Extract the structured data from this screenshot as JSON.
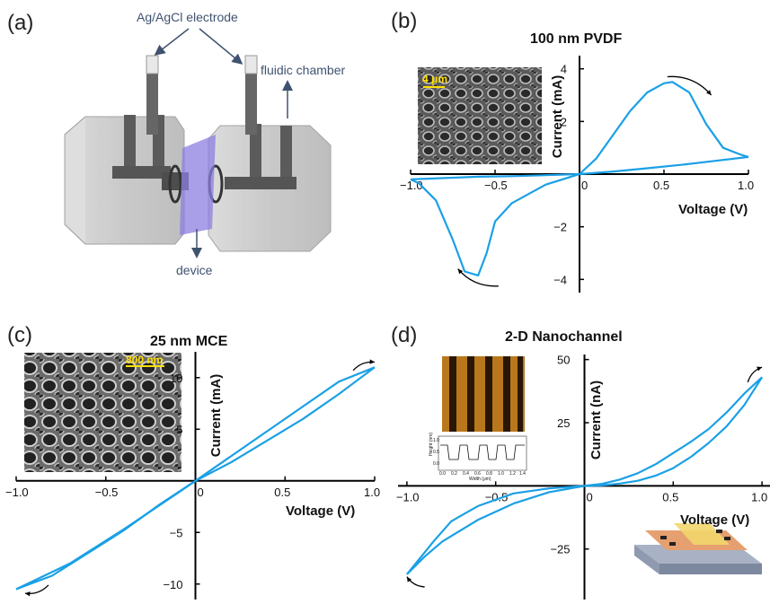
{
  "panels": {
    "a": {
      "letter": "(a)",
      "labels": {
        "electrode": "Ag/AgCl electrode",
        "chamber": "fluidic chamber",
        "device": "device"
      }
    },
    "b": {
      "letter": "(b)",
      "inset_scale": "4 μm"
    },
    "c": {
      "letter": "(c)",
      "inset_scale": "800 nm"
    },
    "d": {
      "letter": "(d)",
      "afm": {
        "ylabel": "Height (nm)",
        "xlabel": "Width (μm)",
        "yticks": [
          "1.0",
          "0.5",
          "0.0"
        ],
        "xticks": [
          "0.0",
          "0.2",
          "0.4",
          "0.6",
          "0.8",
          "1.0",
          "1.2",
          "1.4"
        ]
      }
    }
  },
  "colors": {
    "curve": "#1aa0e6",
    "arrow": "#000000",
    "axis": "#000000",
    "label_blue": "#3f5270"
  },
  "chart_data": [
    {
      "type": "line",
      "panel": "b",
      "title": "100 nm PVDF",
      "xlabel": "Voltage (V)",
      "ylabel": "Current (mA)",
      "xlim": [
        -1.0,
        1.0
      ],
      "ylim": [
        -4.5,
        4.5
      ],
      "xticks": [
        -1.0,
        -0.5,
        0,
        0.5,
        1.0
      ],
      "xtick_labels": [
        "−1.0",
        "−0.5",
        "0",
        "0.5",
        "1.0"
      ],
      "yticks": [
        -4,
        -2,
        0,
        2,
        4
      ],
      "ytick_labels": [
        "−4",
        "−2",
        "0",
        "2",
        "4"
      ],
      "series": [
        {
          "x": [
            0,
            0.1,
            0.2,
            0.3,
            0.4,
            0.5,
            0.55,
            0.65,
            0.75,
            0.85,
            0.95,
            1.0
          ],
          "y": [
            0,
            0.6,
            1.5,
            2.4,
            3.1,
            3.45,
            3.5,
            3.1,
            1.9,
            1.0,
            0.75,
            0.65
          ]
        },
        {
          "x": [
            1.0,
            0.8,
            0.6,
            0.4,
            0.2,
            0.0,
            -0.2,
            -0.4,
            -0.5,
            -0.55,
            -0.6,
            -0.68,
            -0.75,
            -0.85,
            -0.95,
            -1.0
          ],
          "y": [
            0.65,
            0.5,
            0.35,
            0.22,
            0.1,
            0.0,
            -0.4,
            -1.1,
            -1.8,
            -3.0,
            -3.85,
            -3.7,
            -2.5,
            -1.0,
            -0.35,
            -0.2
          ]
        },
        {
          "x": [
            -1.0,
            -0.8,
            -0.6,
            -0.4,
            -0.2,
            0.0
          ],
          "y": [
            -0.2,
            -0.15,
            -0.1,
            -0.08,
            -0.04,
            0.0
          ]
        }
      ]
    },
    {
      "type": "line",
      "panel": "c",
      "title": "25 nm MCE",
      "xlabel": "Voltage (V)",
      "ylabel": "Current (mA)",
      "xlim": [
        -1.0,
        1.0
      ],
      "ylim": [
        -11.5,
        12.5
      ],
      "xticks": [
        -1.0,
        -0.5,
        0,
        0.5,
        1.0
      ],
      "xtick_labels": [
        "−1.0",
        "−0.5",
        "0",
        "0.5",
        "1.0"
      ],
      "yticks": [
        -10,
        -5,
        0,
        5,
        10
      ],
      "ytick_labels": [
        "−10",
        "−5",
        "0",
        "5",
        "10"
      ],
      "series": [
        {
          "x": [
            -1.0,
            -0.7,
            -0.4,
            -0.1,
            0.0,
            0.2,
            0.4,
            0.6,
            0.8,
            1.0
          ],
          "y": [
            -10.5,
            -8.0,
            -4.7,
            -1.2,
            0.0,
            1.8,
            3.9,
            6.0,
            8.4,
            11.0
          ]
        },
        {
          "x": [
            1.0,
            0.8,
            0.6,
            0.4,
            0.2,
            0.0,
            -0.2,
            -0.4,
            -0.6,
            -0.8,
            -1.0
          ],
          "y": [
            11.0,
            9.6,
            7.2,
            4.8,
            2.4,
            0.0,
            -2.3,
            -4.8,
            -7.0,
            -9.2,
            -10.5
          ]
        }
      ]
    },
    {
      "type": "line",
      "panel": "d",
      "title": "2-D Nanochannel",
      "xlabel": "Voltage (V)",
      "ylabel": "Current (nA)",
      "xlim": [
        -1.05,
        1.05
      ],
      "ylim": [
        -45,
        52
      ],
      "xticks": [
        -1.0,
        -0.5,
        0,
        0.5,
        1.0
      ],
      "xtick_labels": [
        "−1.0",
        "−0.5",
        "0",
        "0.5",
        "1.0"
      ],
      "yticks": [
        -25,
        0,
        25,
        50
      ],
      "ytick_labels": [
        "−25",
        "0",
        "25",
        "50"
      ],
      "series": [
        {
          "x": [
            0.0,
            0.1,
            0.2,
            0.3,
            0.4,
            0.5,
            0.6,
            0.7,
            0.8,
            0.9,
            1.0
          ],
          "y": [
            0.0,
            0.8,
            2.5,
            5.0,
            8.5,
            13.0,
            17.5,
            22.5,
            29.0,
            36.5,
            43.0
          ]
        },
        {
          "x": [
            1.0,
            0.9,
            0.8,
            0.7,
            0.6,
            0.5,
            0.4,
            0.3,
            0.2,
            0.1,
            0.0
          ],
          "y": [
            43.0,
            32.0,
            23.5,
            17.0,
            11.5,
            7.0,
            4.0,
            2.0,
            0.9,
            0.2,
            0.0
          ]
        },
        {
          "x": [
            0.0,
            -0.2,
            -0.4,
            -0.6,
            -0.8,
            -0.9,
            -1.0
          ],
          "y": [
            0.0,
            -2.5,
            -7.0,
            -13.5,
            -22.0,
            -28.0,
            -35.0
          ]
        },
        {
          "x": [
            -1.0,
            -0.85,
            -0.75,
            -0.6,
            -0.4,
            -0.2,
            0.0
          ],
          "y": [
            -35.0,
            -22.0,
            -14.0,
            -8.0,
            -3.0,
            -1.0,
            0.0
          ]
        }
      ]
    }
  ]
}
